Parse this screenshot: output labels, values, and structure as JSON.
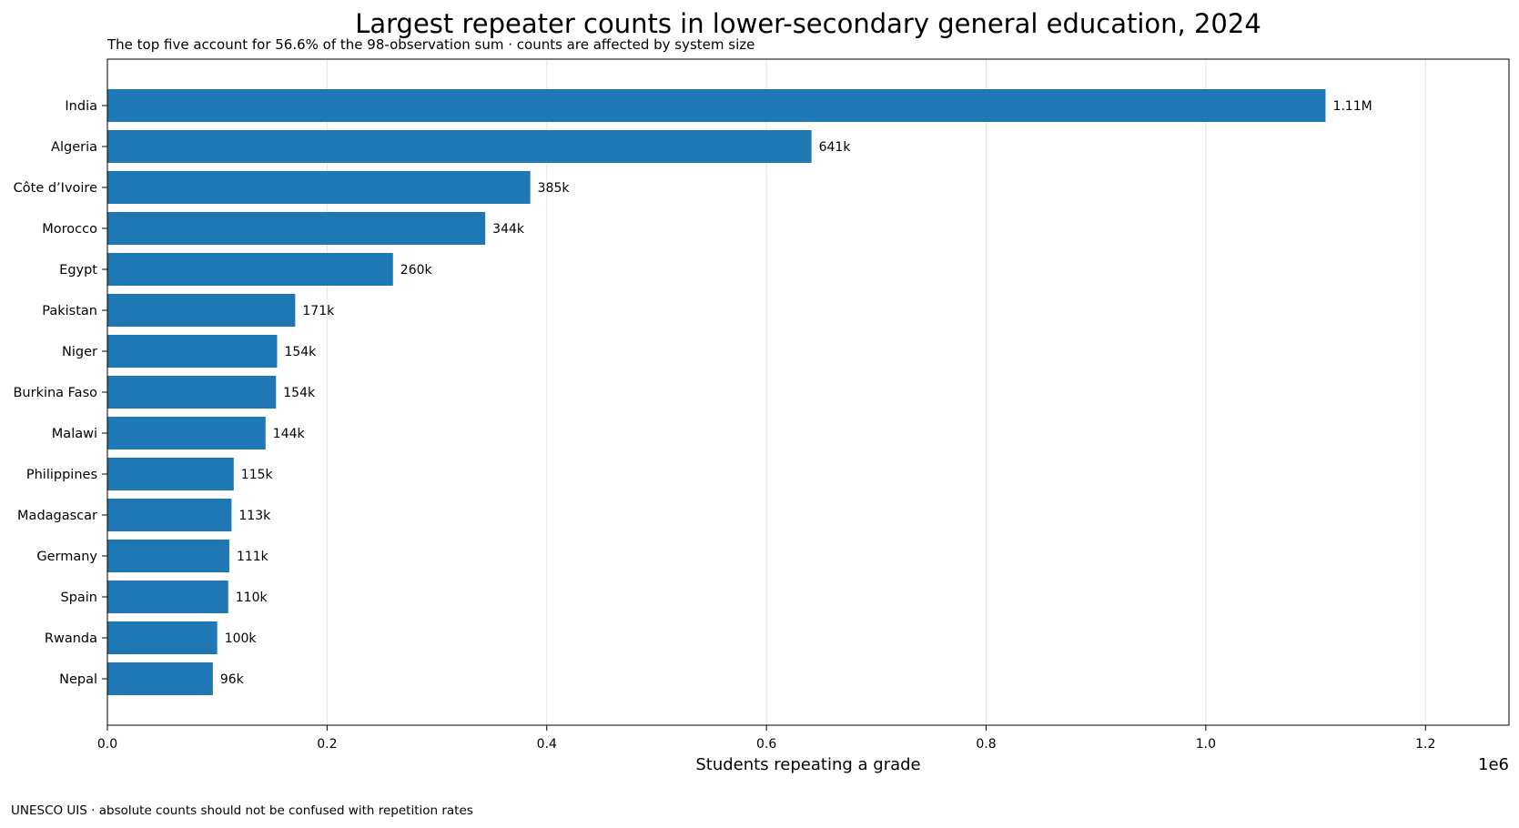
{
  "chart_data": {
    "type": "bar",
    "orientation": "horizontal",
    "title": "Largest repeater counts in lower-secondary general education, 2024",
    "subtitle": "The top five account for 56.6% of the 98-observation sum · counts are affected by system size",
    "xlabel": "Students repeating a grade",
    "x_scale_label": "1e6",
    "source_note": "UNESCO UIS · absolute counts should not be confused with repetition rates",
    "categories": [
      "India",
      "Algeria",
      "Côte d’Ivoire",
      "Morocco",
      "Egypt",
      "Pakistan",
      "Niger",
      "Burkina Faso",
      "Malawi",
      "Philippines",
      "Madagascar",
      "Germany",
      "Spain",
      "Rwanda",
      "Nepal"
    ],
    "values": [
      1109000,
      641000,
      385000,
      344000,
      260000,
      171000,
      154500,
      153500,
      144000,
      115000,
      113000,
      111000,
      110000,
      100000,
      96000
    ],
    "value_labels": [
      "1.11M",
      "641k",
      "385k",
      "344k",
      "260k",
      "171k",
      "154k",
      "154k",
      "144k",
      "115k",
      "113k",
      "111k",
      "110k",
      "100k",
      "96k"
    ],
    "xlim": [
      0,
      1276000
    ],
    "xticks": [
      0,
      200000,
      400000,
      600000,
      800000,
      1000000,
      1200000
    ],
    "xtick_labels": [
      "0.0",
      "0.2",
      "0.4",
      "0.6",
      "0.8",
      "1.0",
      "1.2"
    ],
    "grid": "vertical",
    "bar_color": "#1f77b4"
  }
}
